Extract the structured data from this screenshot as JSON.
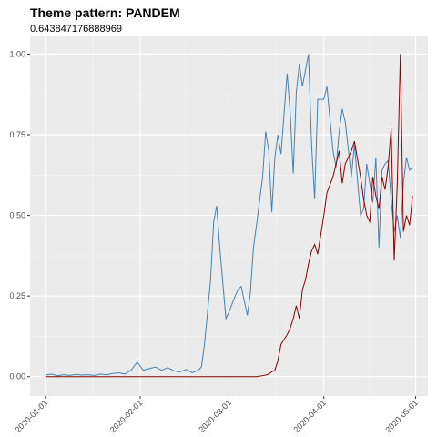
{
  "chart_data": {
    "type": "line",
    "title": "Theme pattern: PANDEM",
    "subtitle": "0.643847176888969",
    "x": [
      "2020-01-01",
      "2020-01-03",
      "2020-01-05",
      "2020-01-07",
      "2020-01-09",
      "2020-01-11",
      "2020-01-13",
      "2020-01-15",
      "2020-01-17",
      "2020-01-19",
      "2020-01-21",
      "2020-01-23",
      "2020-01-25",
      "2020-01-27",
      "2020-01-29",
      "2020-01-31",
      "2020-02-02",
      "2020-02-04",
      "2020-02-06",
      "2020-02-08",
      "2020-02-10",
      "2020-02-12",
      "2020-02-14",
      "2020-02-16",
      "2020-02-18",
      "2020-02-20",
      "2020-02-21",
      "2020-02-22",
      "2020-02-24",
      "2020-02-25",
      "2020-02-26",
      "2020-02-27",
      "2020-02-29",
      "2020-03-01",
      "2020-03-03",
      "2020-03-04",
      "2020-03-05",
      "2020-03-07",
      "2020-03-08",
      "2020-03-09",
      "2020-03-10",
      "2020-03-12",
      "2020-03-13",
      "2020-03-14",
      "2020-03-15",
      "2020-03-16",
      "2020-03-17",
      "2020-03-18",
      "2020-03-20",
      "2020-03-21",
      "2020-03-22",
      "2020-03-23",
      "2020-03-24",
      "2020-03-25",
      "2020-03-26",
      "2020-03-27",
      "2020-03-28",
      "2020-03-29",
      "2020-03-30",
      "2020-04-01",
      "2020-04-02",
      "2020-04-04",
      "2020-04-05",
      "2020-04-06",
      "2020-04-07",
      "2020-04-08",
      "2020-04-10",
      "2020-04-11",
      "2020-04-13",
      "2020-04-14",
      "2020-04-15",
      "2020-04-16",
      "2020-04-17",
      "2020-04-18",
      "2020-04-19",
      "2020-04-20",
      "2020-04-21",
      "2020-04-22",
      "2020-04-23",
      "2020-04-24",
      "2020-04-25",
      "2020-04-26",
      "2020-04-27",
      "2020-04-28",
      "2020-04-29",
      "2020-04-30"
    ],
    "series": [
      {
        "color": "#4682b4",
        "values": [
          0.005,
          0.008,
          0.003,
          0.006,
          0.004,
          0.007,
          0.005,
          0.006,
          0.004,
          0.008,
          0.006,
          0.01,
          0.012,
          0.008,
          0.02,
          0.045,
          0.02,
          0.025,
          0.03,
          0.02,
          0.028,
          0.018,
          0.015,
          0.022,
          0.012,
          0.02,
          0.03,
          0.1,
          0.3,
          0.48,
          0.53,
          0.4,
          0.18,
          0.2,
          0.25,
          0.27,
          0.28,
          0.19,
          0.26,
          0.4,
          0.47,
          0.62,
          0.76,
          0.7,
          0.51,
          0.68,
          0.75,
          0.69,
          0.94,
          0.82,
          0.63,
          0.88,
          0.97,
          0.9,
          0.95,
          1.0,
          0.72,
          0.55,
          0.86,
          0.86,
          0.9,
          0.7,
          0.65,
          0.76,
          0.83,
          0.79,
          0.62,
          0.72,
          0.5,
          0.52,
          0.66,
          0.6,
          0.54,
          0.68,
          0.4,
          0.64,
          0.66,
          0.67,
          0.55,
          0.45,
          0.5,
          0.43,
          0.6,
          0.68,
          0.64,
          0.65
        ]
      },
      {
        "color": "#8b0000",
        "values": [
          0,
          0,
          0,
          0,
          0,
          0,
          0,
          0,
          0,
          0,
          0,
          0,
          0,
          0,
          0,
          0,
          0,
          0,
          0,
          0,
          0,
          0,
          0,
          0,
          0,
          0,
          0,
          0,
          0,
          0,
          0,
          0,
          0,
          0,
          0,
          0,
          0,
          0,
          0,
          0,
          0,
          0.003,
          0.005,
          0.008,
          0.015,
          0.02,
          0.05,
          0.1,
          0.13,
          0.15,
          0.18,
          0.22,
          0.18,
          0.27,
          0.3,
          0.35,
          0.39,
          0.41,
          0.38,
          0.5,
          0.57,
          0.62,
          0.66,
          0.7,
          0.6,
          0.66,
          0.7,
          0.73,
          0.62,
          0.55,
          0.5,
          0.48,
          0.62,
          0.56,
          0.52,
          0.62,
          0.58,
          0.65,
          0.77,
          0.36,
          0.6,
          1.0,
          0.45,
          0.5,
          0.47,
          0.56
        ]
      }
    ],
    "xlim": [
      "2019-12-27",
      "2020-05-05"
    ],
    "xticks": [
      "2020-01-01",
      "2020-02-01",
      "2020-03-01",
      "2020-04-01",
      "2020-05-01"
    ],
    "ylim": [
      -0.06,
      1.055
    ],
    "yticks": [
      {
        "value": 0,
        "label": "0.00"
      },
      {
        "value": 0.25,
        "label": "0.25"
      },
      {
        "value": 0.5,
        "label": "0.50"
      },
      {
        "value": 0.75,
        "label": "0.75"
      },
      {
        "value": 1,
        "label": "1.00"
      }
    ],
    "grid": true
  }
}
